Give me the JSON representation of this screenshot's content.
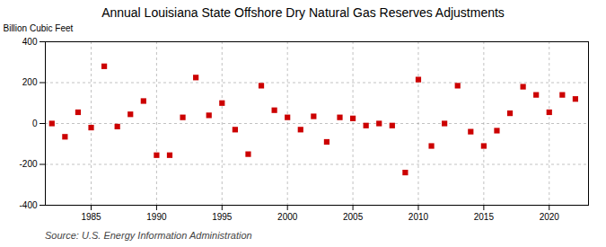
{
  "chart_data": {
    "type": "scatter",
    "title": "Annual Louisiana State Offshore Dry Natural Gas Reserves Adjustments",
    "ylabel": "Billion Cubic Feet",
    "source": "Source: U.S. Energy Information Administration",
    "x": [
      1982,
      1983,
      1984,
      1985,
      1986,
      1987,
      1988,
      1989,
      1990,
      1991,
      1992,
      1993,
      1994,
      1995,
      1996,
      1997,
      1998,
      1999,
      2000,
      2001,
      2002,
      2003,
      2004,
      2005,
      2006,
      2007,
      2008,
      2009,
      2010,
      2011,
      2012,
      2013,
      2014,
      2015,
      2016,
      2017,
      2018,
      2019,
      2020,
      2021,
      2022
    ],
    "values": [
      0,
      -65,
      55,
      -20,
      280,
      -15,
      45,
      110,
      -155,
      -155,
      30,
      225,
      40,
      100,
      -30,
      -150,
      185,
      65,
      30,
      -30,
      35,
      -90,
      30,
      25,
      -10,
      0,
      -10,
      -240,
      215,
      -110,
      0,
      185,
      -40,
      -110,
      -35,
      50,
      180,
      140,
      55,
      140,
      120
    ],
    "color": "#cc0000",
    "marker": "square",
    "xlim": [
      1981.5,
      2023
    ],
    "xticks": [
      1985,
      1990,
      1995,
      2000,
      2005,
      2010,
      2015,
      2020
    ],
    "ylim": [
      -400,
      400
    ],
    "yticks": [
      -400,
      -200,
      0,
      200,
      400
    ],
    "grid": true
  }
}
